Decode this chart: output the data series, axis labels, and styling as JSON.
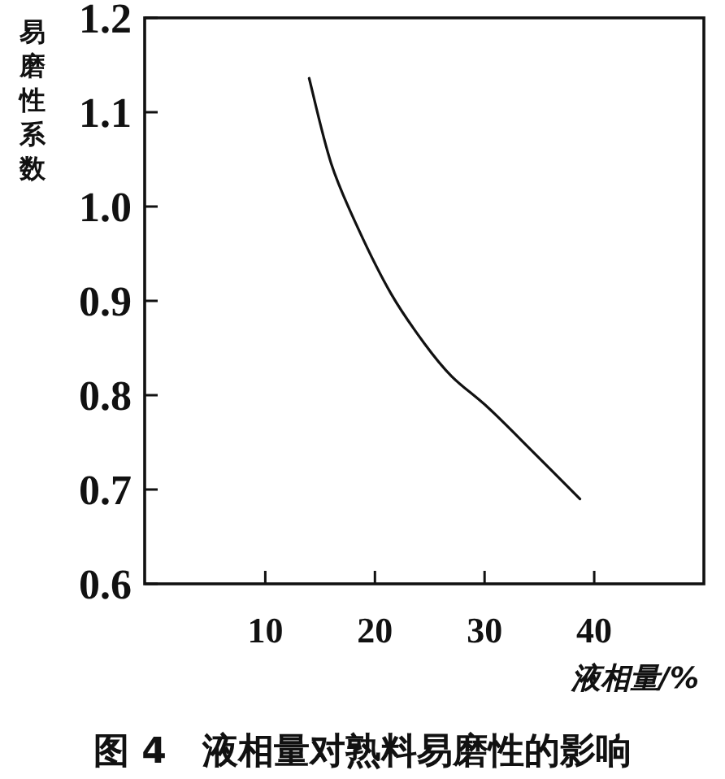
{
  "chart_data": {
    "type": "line",
    "title": "图 4　液相量对熟料易磨性的影响",
    "xlabel": "液相量/%",
    "ylabel": "易磨性系数",
    "x": [
      14.0,
      16.0,
      18.5,
      21.5,
      24.5,
      27.0,
      30.4,
      34.5,
      38.7
    ],
    "values": [
      1.136,
      1.046,
      0.976,
      0.907,
      0.855,
      0.82,
      0.786,
      0.739,
      0.69
    ],
    "color": "#111111",
    "xlim": [
      -1,
      50
    ],
    "ylim": [
      0.6,
      1.2
    ],
    "xticks": [
      10,
      20,
      30,
      40
    ],
    "yticks": [
      0.6,
      0.7,
      0.8,
      0.9,
      {
        "value": 1.0,
        "label": "1.0"
      },
      1.1,
      1.2
    ]
  }
}
